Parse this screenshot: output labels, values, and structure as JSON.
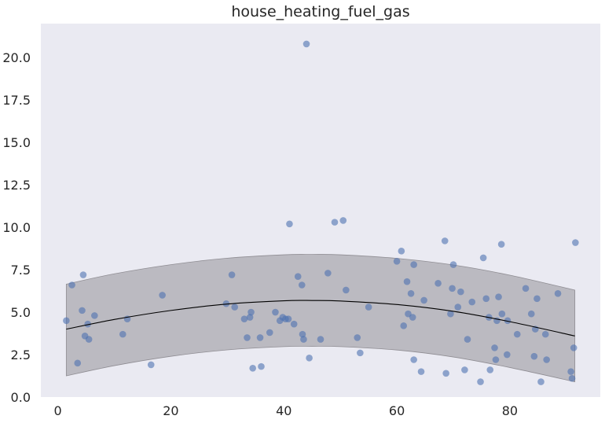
{
  "chart_data": {
    "type": "scatter",
    "title": "house_heating_fuel_gas",
    "xlabel": "",
    "ylabel": "",
    "xlim": [
      -3,
      96
    ],
    "ylim": [
      0,
      22
    ],
    "x_ticks": [
      0,
      20,
      40,
      60,
      80
    ],
    "x_tick_labels": [
      "0",
      "20",
      "40",
      "60",
      "80"
    ],
    "y_ticks": [
      0,
      2.5,
      5,
      7.5,
      10,
      12.5,
      15,
      17.5,
      20
    ],
    "y_tick_labels": [
      "0.0",
      "2.5",
      "5.0",
      "7.5",
      "10.0",
      "12.5",
      "15.0",
      "17.5",
      "20.0"
    ],
    "grid": false,
    "background_color": "#eaeaf2",
    "point_color": "#4c72b0",
    "fit_line_color": "#000000",
    "band_color": "#a9a7ad",
    "points": [
      [
        1.5,
        4.5
      ],
      [
        2.5,
        6.6
      ],
      [
        3.5,
        2.0
      ],
      [
        4.3,
        5.1
      ],
      [
        4.5,
        7.2
      ],
      [
        4.8,
        3.6
      ],
      [
        5.3,
        4.3
      ],
      [
        5.5,
        3.4
      ],
      [
        6.5,
        4.8
      ],
      [
        11.5,
        3.7
      ],
      [
        12.3,
        4.6
      ],
      [
        16.5,
        1.9
      ],
      [
        18.5,
        6.0
      ],
      [
        29.8,
        5.5
      ],
      [
        30.8,
        7.2
      ],
      [
        31.3,
        5.3
      ],
      [
        33.0,
        4.6
      ],
      [
        33.5,
        3.5
      ],
      [
        34.0,
        4.7
      ],
      [
        34.2,
        5.0
      ],
      [
        34.5,
        1.7
      ],
      [
        35.8,
        3.5
      ],
      [
        36.0,
        1.8
      ],
      [
        37.5,
        3.8
      ],
      [
        38.5,
        5.0
      ],
      [
        39.3,
        4.5
      ],
      [
        39.8,
        4.7
      ],
      [
        40.3,
        4.6
      ],
      [
        40.8,
        4.6
      ],
      [
        41.0,
        10.2
      ],
      [
        41.8,
        4.3
      ],
      [
        42.5,
        7.1
      ],
      [
        43.2,
        6.6
      ],
      [
        43.3,
        3.7
      ],
      [
        43.5,
        3.4
      ],
      [
        44.0,
        20.8
      ],
      [
        44.5,
        2.3
      ],
      [
        46.5,
        3.4
      ],
      [
        47.8,
        7.3
      ],
      [
        49.0,
        10.3
      ],
      [
        50.5,
        10.4
      ],
      [
        51.0,
        6.3
      ],
      [
        53.0,
        3.5
      ],
      [
        53.5,
        2.6
      ],
      [
        55.0,
        5.3
      ],
      [
        60.0,
        8.0
      ],
      [
        60.8,
        8.6
      ],
      [
        61.2,
        4.2
      ],
      [
        61.8,
        6.8
      ],
      [
        62.0,
        4.9
      ],
      [
        62.5,
        6.1
      ],
      [
        62.8,
        4.7
      ],
      [
        63.0,
        7.8
      ],
      [
        63.0,
        2.2
      ],
      [
        64.3,
        1.5
      ],
      [
        64.8,
        5.7
      ],
      [
        67.3,
        6.7
      ],
      [
        68.5,
        9.2
      ],
      [
        68.7,
        1.4
      ],
      [
        69.5,
        4.9
      ],
      [
        69.8,
        6.4
      ],
      [
        70.0,
        7.8
      ],
      [
        70.8,
        5.3
      ],
      [
        71.3,
        6.2
      ],
      [
        72.0,
        1.6
      ],
      [
        72.5,
        3.4
      ],
      [
        73.3,
        5.6
      ],
      [
        74.8,
        0.9
      ],
      [
        75.3,
        8.2
      ],
      [
        75.8,
        5.8
      ],
      [
        76.3,
        4.7
      ],
      [
        76.5,
        1.6
      ],
      [
        77.3,
        2.9
      ],
      [
        77.5,
        2.2
      ],
      [
        77.7,
        4.5
      ],
      [
        78.0,
        5.9
      ],
      [
        78.5,
        9.0
      ],
      [
        78.6,
        4.9
      ],
      [
        79.5,
        2.5
      ],
      [
        79.6,
        4.5
      ],
      [
        81.3,
        3.7
      ],
      [
        82.8,
        6.4
      ],
      [
        83.8,
        4.9
      ],
      [
        84.3,
        2.4
      ],
      [
        84.5,
        4.0
      ],
      [
        84.8,
        5.8
      ],
      [
        85.5,
        0.9
      ],
      [
        86.3,
        3.7
      ],
      [
        86.5,
        2.2
      ],
      [
        88.5,
        6.1
      ],
      [
        90.8,
        1.5
      ],
      [
        91.0,
        1.1
      ],
      [
        91.3,
        2.9
      ],
      [
        91.6,
        9.1
      ]
    ],
    "fit_line": [
      [
        1.5,
        4.0
      ],
      [
        10,
        4.57
      ],
      [
        20,
        5.1
      ],
      [
        30,
        5.48
      ],
      [
        40,
        5.67
      ],
      [
        45,
        5.69
      ],
      [
        50,
        5.66
      ],
      [
        60,
        5.45
      ],
      [
        70,
        5.05
      ],
      [
        80,
        4.44
      ],
      [
        91.5,
        3.6
      ]
    ],
    "band_upper": [
      [
        1.5,
        6.65
      ],
      [
        10,
        7.26
      ],
      [
        20,
        7.8
      ],
      [
        30,
        8.18
      ],
      [
        40,
        8.38
      ],
      [
        45,
        8.4
      ],
      [
        50,
        8.38
      ],
      [
        60,
        8.17
      ],
      [
        70,
        7.78
      ],
      [
        80,
        7.18
      ],
      [
        91.5,
        6.3
      ]
    ],
    "band_lower": [
      [
        1.5,
        1.25
      ],
      [
        10,
        1.85
      ],
      [
        20,
        2.4
      ],
      [
        30,
        2.78
      ],
      [
        40,
        2.97
      ],
      [
        45,
        2.99
      ],
      [
        50,
        2.97
      ],
      [
        60,
        2.77
      ],
      [
        70,
        2.36
      ],
      [
        80,
        1.74
      ],
      [
        91.5,
        0.9
      ]
    ]
  }
}
